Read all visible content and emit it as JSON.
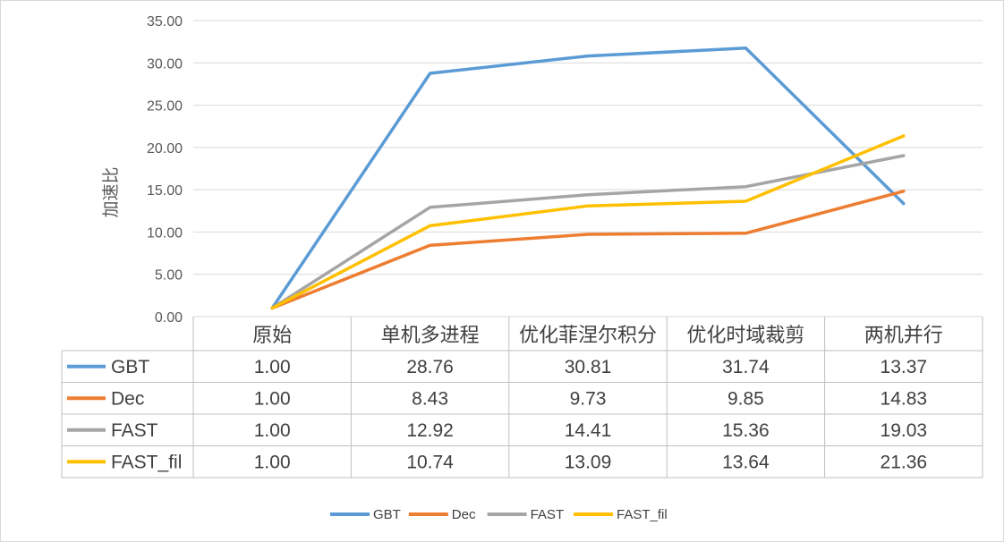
{
  "chart_data": {
    "type": "line",
    "ylabel": "加速比",
    "ylim": [
      0,
      35
    ],
    "ytick_step": 5,
    "yticks": [
      "0.00",
      "5.00",
      "10.00",
      "15.00",
      "20.00",
      "25.00",
      "30.00",
      "35.00"
    ],
    "categories": [
      "原始",
      "单机多进程",
      "优化菲涅尔积分",
      "优化时域裁剪",
      "两机并行"
    ],
    "grid": true,
    "legend_position": "bottom",
    "data_table": true,
    "series": [
      {
        "name": "GBT",
        "color": "#5b9bd5",
        "values": [
          1.0,
          28.76,
          30.81,
          31.74,
          13.37
        ],
        "labels": [
          "1.00",
          "28.76",
          "30.81",
          "31.74",
          "13.37"
        ]
      },
      {
        "name": "Dec",
        "color": "#ed7d31",
        "values": [
          1.0,
          8.43,
          9.73,
          9.85,
          14.83
        ],
        "labels": [
          "1.00",
          "8.43",
          "9.73",
          "9.85",
          "14.83"
        ]
      },
      {
        "name": "FAST",
        "color": "#a5a5a5",
        "values": [
          1.0,
          12.92,
          14.41,
          15.36,
          19.03
        ],
        "labels": [
          "1.00",
          "12.92",
          "14.41",
          "15.36",
          "19.03"
        ]
      },
      {
        "name": "FAST_fil",
        "color": "#ffc000",
        "values": [
          1.0,
          10.74,
          13.09,
          13.64,
          21.36
        ],
        "labels": [
          "1.00",
          "10.74",
          "13.09",
          "13.64",
          "21.36"
        ]
      }
    ]
  }
}
